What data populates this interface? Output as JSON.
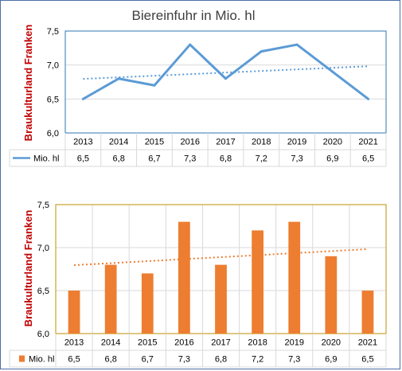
{
  "chart_data": [
    {
      "type": "line",
      "title": "Biereinfuhr in Mio. hl",
      "ylabel": "Braukulturland Franken",
      "ylim": [
        6.0,
        7.5
      ],
      "yticks": [
        "6,0",
        "6,5",
        "7,0",
        "7,5"
      ],
      "categories": [
        "2013",
        "2014",
        "2015",
        "2016",
        "2017",
        "2018",
        "2019",
        "2020",
        "2021"
      ],
      "series": [
        {
          "name": "Mio. hl",
          "values": [
            6.5,
            6.8,
            6.7,
            7.3,
            6.8,
            7.2,
            7.3,
            6.9,
            6.5
          ],
          "labels": [
            "6,5",
            "6,8",
            "6,7",
            "7,3",
            "6,8",
            "7,2",
            "7,3",
            "6,9",
            "6,5"
          ]
        }
      ],
      "trendline": true,
      "data_table": true,
      "colors": {
        "series": "#5b9bd5",
        "trend": "#5b9bd5",
        "plot_border": "#2e75b6"
      }
    },
    {
      "type": "bar",
      "title": "",
      "ylabel": "Braukulturland Franken",
      "ylim": [
        6.0,
        7.5
      ],
      "yticks": [
        "6,0",
        "6,5",
        "7,0",
        "7,5"
      ],
      "categories": [
        "2013",
        "2014",
        "2015",
        "2016",
        "2017",
        "2018",
        "2019",
        "2020",
        "2021"
      ],
      "series": [
        {
          "name": "Mio. hl",
          "values": [
            6.5,
            6.8,
            6.7,
            7.3,
            6.8,
            7.2,
            7.3,
            6.9,
            6.5
          ],
          "labels": [
            "6,5",
            "6,8",
            "6,7",
            "7,3",
            "6,8",
            "7,2",
            "7,3",
            "6,9",
            "6,5"
          ]
        }
      ],
      "trendline": true,
      "data_table": true,
      "colors": {
        "series": "#ed7d31",
        "trend": "#ed7d31",
        "plot_border": "#bf9000"
      }
    }
  ],
  "colors": {
    "ylabel": "#c00000",
    "grid": "#d9d9d9",
    "window_border": "#4a6fa5"
  }
}
